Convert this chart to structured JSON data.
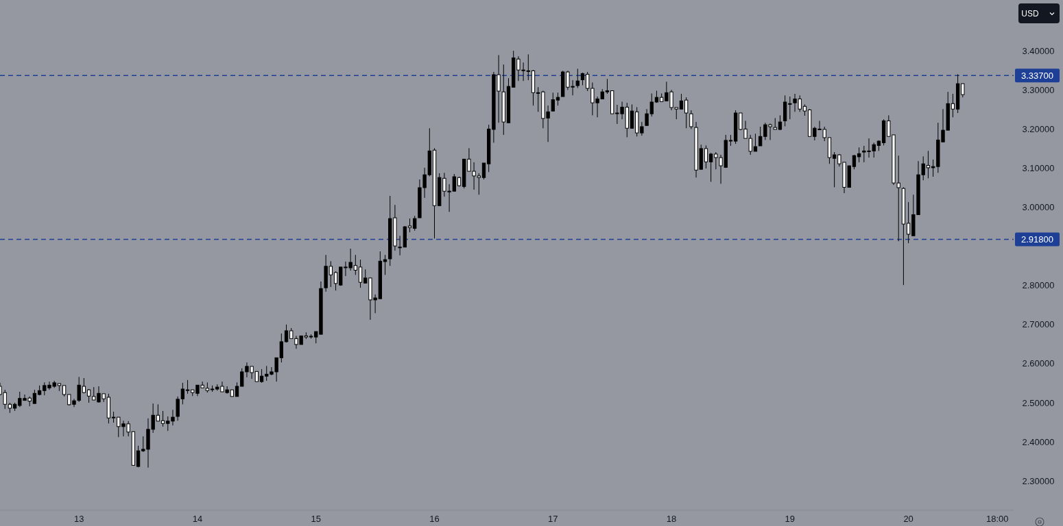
{
  "chart_data": {
    "type": "candlestick",
    "color": "#000000",
    "categories": [
      null,
      null,
      null,
      null,
      null,
      null,
      null,
      null,
      null,
      null,
      null,
      null,
      null,
      null,
      null,
      null,
      "13",
      null,
      null,
      null,
      null,
      null,
      null,
      null,
      null,
      null,
      null,
      null,
      null,
      null,
      null,
      null,
      null,
      null,
      null,
      null,
      null,
      null,
      null,
      null,
      "14",
      null,
      null,
      null,
      null,
      null,
      null,
      null,
      null,
      null,
      null,
      null,
      null,
      null,
      null,
      null,
      null,
      null,
      null,
      null,
      null,
      null,
      null,
      null,
      "15",
      null,
      null,
      null,
      null,
      null,
      null,
      null,
      null,
      null,
      null,
      null,
      null,
      null,
      null,
      null,
      null,
      null,
      null,
      null,
      null,
      null,
      null,
      null,
      "16",
      null,
      null,
      null,
      null,
      null,
      null,
      null,
      null,
      null,
      null,
      null,
      null,
      null,
      null,
      null,
      null,
      null,
      null,
      null,
      null,
      null,
      null,
      null,
      "17",
      null,
      null,
      null,
      null,
      null,
      null,
      null,
      null,
      null,
      null,
      null,
      null,
      null,
      null,
      null,
      null,
      null,
      null,
      null,
      null,
      null,
      null,
      null,
      "18",
      null,
      null,
      null,
      null,
      null,
      null,
      null,
      null,
      null,
      null,
      null,
      null,
      null,
      null,
      null,
      null,
      null,
      null,
      null,
      null,
      null,
      null,
      null,
      "19",
      null,
      null,
      null,
      null,
      null,
      null,
      null,
      null,
      null,
      null,
      null,
      null,
      null,
      null,
      null,
      null,
      null,
      null,
      null,
      null,
      null,
      null,
      null,
      "20",
      null,
      null,
      null,
      null,
      null,
      null,
      null,
      null,
      null,
      null,
      null,
      null,
      null,
      null,
      null,
      null,
      null,
      "18:00",
      null,
      null,
      null
    ],
    "ohlc": [
      [
        2.542,
        2.551,
        2.519,
        2.521
      ],
      [
        2.526,
        2.533,
        2.484,
        2.496
      ],
      [
        2.496,
        2.5,
        2.474,
        2.486
      ],
      [
        2.486,
        2.5,
        2.479,
        2.496
      ],
      [
        2.493,
        2.528,
        2.489,
        2.511
      ],
      [
        2.506,
        2.521,
        2.506,
        2.511
      ],
      [
        2.512,
        2.516,
        2.491,
        2.504
      ],
      [
        2.498,
        2.533,
        2.498,
        2.524
      ],
      [
        2.521,
        2.544,
        2.519,
        2.531
      ],
      [
        2.531,
        2.552,
        2.519,
        2.544
      ],
      [
        2.538,
        2.554,
        2.533,
        2.545
      ],
      [
        2.542,
        2.556,
        2.538,
        2.551
      ],
      [
        2.549,
        2.549,
        2.53,
        2.544
      ],
      [
        2.544,
        2.544,
        2.516,
        2.521
      ],
      [
        2.521,
        2.521,
        2.493,
        2.495
      ],
      [
        2.496,
        2.51,
        2.489,
        2.505
      ],
      [
        2.506,
        2.566,
        2.502,
        2.545
      ],
      [
        2.542,
        2.563,
        2.524,
        2.526
      ],
      [
        2.533,
        2.535,
        2.5,
        2.517
      ],
      [
        2.516,
        2.54,
        2.507,
        2.507
      ],
      [
        2.502,
        2.542,
        2.5,
        2.524
      ],
      [
        2.523,
        2.523,
        2.502,
        2.51
      ],
      [
        2.514,
        2.523,
        2.447,
        2.461
      ],
      [
        2.463,
        2.477,
        2.449,
        2.463
      ],
      [
        2.463,
        2.463,
        2.412,
        2.439
      ],
      [
        2.439,
        2.454,
        2.414,
        2.446
      ],
      [
        2.446,
        2.453,
        2.414,
        2.425
      ],
      [
        2.426,
        2.426,
        2.339,
        2.34
      ],
      [
        2.337,
        2.39,
        2.335,
        2.377
      ],
      [
        2.377,
        2.414,
        2.374,
        2.381
      ],
      [
        2.381,
        2.46,
        2.334,
        2.432
      ],
      [
        2.432,
        2.498,
        2.423,
        2.468
      ],
      [
        2.468,
        2.496,
        2.453,
        2.453
      ],
      [
        2.454,
        2.479,
        2.439,
        2.447
      ],
      [
        2.447,
        2.465,
        2.428,
        2.453
      ],
      [
        2.453,
        2.482,
        2.442,
        2.463
      ],
      [
        2.465,
        2.516,
        2.454,
        2.509
      ],
      [
        2.51,
        2.551,
        2.496,
        2.535
      ],
      [
        2.533,
        2.558,
        2.523,
        2.533
      ],
      [
        2.533,
        2.533,
        2.517,
        2.526
      ],
      [
        2.524,
        2.545,
        2.517,
        2.545
      ],
      [
        2.545,
        2.554,
        2.538,
        2.538
      ],
      [
        2.537,
        2.552,
        2.526,
        2.531
      ],
      [
        2.535,
        2.544,
        2.528,
        2.535
      ],
      [
        2.535,
        2.547,
        2.531,
        2.54
      ],
      [
        2.542,
        2.554,
        2.528,
        2.528
      ],
      [
        2.526,
        2.542,
        2.523,
        2.533
      ],
      [
        2.533,
        2.533,
        2.516,
        2.516
      ],
      [
        2.516,
        2.552,
        2.516,
        2.542
      ],
      [
        2.542,
        2.588,
        2.542,
        2.579
      ],
      [
        2.579,
        2.603,
        2.565,
        2.593
      ],
      [
        2.593,
        2.593,
        2.561,
        2.577
      ],
      [
        2.58,
        2.58,
        2.554,
        2.554
      ],
      [
        2.554,
        2.586,
        2.551,
        2.568
      ],
      [
        2.568,
        2.594,
        2.556,
        2.573
      ],
      [
        2.573,
        2.591,
        2.57,
        2.579
      ],
      [
        2.579,
        2.615,
        2.554,
        2.615
      ],
      [
        2.615,
        2.677,
        2.603,
        2.656
      ],
      [
        2.656,
        2.7,
        2.654,
        2.684
      ],
      [
        2.684,
        2.691,
        2.664,
        2.664
      ],
      [
        2.664,
        2.671,
        2.638,
        2.649
      ],
      [
        2.649,
        2.671,
        2.649,
        2.671
      ],
      [
        2.671,
        2.68,
        2.663,
        2.668
      ],
      [
        2.67,
        2.675,
        2.664,
        2.67
      ],
      [
        2.668,
        2.682,
        2.652,
        2.682
      ],
      [
        2.675,
        2.81,
        2.675,
        2.792
      ],
      [
        2.794,
        2.878,
        2.784,
        2.849
      ],
      [
        2.849,
        2.862,
        2.796,
        2.827
      ],
      [
        2.833,
        2.836,
        2.787,
        2.805
      ],
      [
        2.801,
        2.847,
        2.799,
        2.847
      ],
      [
        2.847,
        2.861,
        2.824,
        2.847
      ],
      [
        2.845,
        2.894,
        2.838,
        2.859
      ],
      [
        2.851,
        2.878,
        2.827,
        2.839
      ],
      [
        2.847,
        2.866,
        2.794,
        2.808
      ],
      [
        2.806,
        2.841,
        2.806,
        2.819
      ],
      [
        2.819,
        2.82,
        2.712,
        2.763
      ],
      [
        2.763,
        2.777,
        2.729,
        2.768
      ],
      [
        2.766,
        2.887,
        2.766,
        2.862
      ],
      [
        2.861,
        2.878,
        2.827,
        2.866
      ],
      [
        2.868,
        3.029,
        2.85,
        2.971
      ],
      [
        2.973,
        3.006,
        2.889,
        2.901
      ],
      [
        2.898,
        2.927,
        2.877,
        2.898
      ],
      [
        2.898,
        2.952,
        2.898,
        2.95
      ],
      [
        2.952,
        2.971,
        2.936,
        2.948
      ],
      [
        2.946,
        2.978,
        2.94,
        2.971
      ],
      [
        2.973,
        3.071,
        2.973,
        3.05
      ],
      [
        3.05,
        3.101,
        3.024,
        3.083
      ],
      [
        3.083,
        3.202,
        3.079,
        3.144
      ],
      [
        3.146,
        3.151,
        2.92,
        3.004
      ],
      [
        3.004,
        3.087,
        3.004,
        3.076
      ],
      [
        3.074,
        3.088,
        3.027,
        3.041
      ],
      [
        3.041,
        3.059,
        2.988,
        3.041
      ],
      [
        3.041,
        3.085,
        3.041,
        3.078
      ],
      [
        3.076,
        3.078,
        3.053,
        3.055
      ],
      [
        3.053,
        3.123,
        3.048,
        3.123
      ],
      [
        3.123,
        3.151,
        3.092,
        3.092
      ],
      [
        3.092,
        3.115,
        3.045,
        3.08
      ],
      [
        3.08,
        3.087,
        3.032,
        3.076
      ],
      [
        3.076,
        3.113,
        3.071,
        3.113
      ],
      [
        3.111,
        3.211,
        3.09,
        3.2
      ],
      [
        3.199,
        3.346,
        3.165,
        3.339
      ],
      [
        3.339,
        3.389,
        3.216,
        3.297
      ],
      [
        3.295,
        3.365,
        3.185,
        3.218
      ],
      [
        3.216,
        3.33,
        3.216,
        3.309
      ],
      [
        3.307,
        3.4,
        3.307,
        3.382
      ],
      [
        3.379,
        3.386,
        3.323,
        3.351
      ],
      [
        3.351,
        3.37,
        3.323,
        3.351
      ],
      [
        3.349,
        3.391,
        3.325,
        3.349
      ],
      [
        3.349,
        3.351,
        3.26,
        3.293
      ],
      [
        3.293,
        3.307,
        3.244,
        3.293
      ],
      [
        3.295,
        3.298,
        3.202,
        3.227
      ],
      [
        3.228,
        3.26,
        3.167,
        3.244
      ],
      [
        3.246,
        3.293,
        3.246,
        3.275
      ],
      [
        3.274,
        3.293,
        3.26,
        3.281
      ],
      [
        3.283,
        3.349,
        3.283,
        3.346
      ],
      [
        3.346,
        3.349,
        3.3,
        3.307
      ],
      [
        3.309,
        3.325,
        3.286,
        3.309
      ],
      [
        3.311,
        3.354,
        3.305,
        3.323
      ],
      [
        3.326,
        3.344,
        3.312,
        3.342
      ],
      [
        3.34,
        3.346,
        3.297,
        3.304
      ],
      [
        3.304,
        3.319,
        3.235,
        3.267
      ],
      [
        3.267,
        3.283,
        3.23,
        3.277
      ],
      [
        3.277,
        3.302,
        3.276,
        3.295
      ],
      [
        3.295,
        3.328,
        3.29,
        3.298
      ],
      [
        3.298,
        3.298,
        3.239,
        3.239
      ],
      [
        3.241,
        3.262,
        3.213,
        3.241
      ],
      [
        3.239,
        3.27,
        3.225,
        3.256
      ],
      [
        3.256,
        3.267,
        3.179,
        3.202
      ],
      [
        3.202,
        3.263,
        3.202,
        3.246
      ],
      [
        3.244,
        3.256,
        3.181,
        3.19
      ],
      [
        3.19,
        3.218,
        3.183,
        3.206
      ],
      [
        3.209,
        3.251,
        3.209,
        3.239
      ],
      [
        3.239,
        3.291,
        3.232,
        3.269
      ],
      [
        3.269,
        3.298,
        3.267,
        3.281
      ],
      [
        3.281,
        3.291,
        3.269,
        3.27
      ],
      [
        3.272,
        3.321,
        3.272,
        3.293
      ],
      [
        3.295,
        3.3,
        3.248,
        3.255
      ],
      [
        3.255,
        3.255,
        3.225,
        3.251
      ],
      [
        3.251,
        3.29,
        3.251,
        3.272
      ],
      [
        3.274,
        3.281,
        3.202,
        3.241
      ],
      [
        3.239,
        3.248,
        3.2,
        3.206
      ],
      [
        3.204,
        3.218,
        3.076,
        3.095
      ],
      [
        3.097,
        3.16,
        3.097,
        3.15
      ],
      [
        3.15,
        3.158,
        3.099,
        3.116
      ],
      [
        3.116,
        3.139,
        3.065,
        3.136
      ],
      [
        3.136,
        3.141,
        3.097,
        3.127
      ],
      [
        3.127,
        3.134,
        3.06,
        3.106
      ],
      [
        3.102,
        3.185,
        3.102,
        3.171
      ],
      [
        3.171,
        3.185,
        3.157,
        3.171
      ],
      [
        3.169,
        3.248,
        3.162,
        3.241
      ],
      [
        3.241,
        3.241,
        3.197,
        3.199
      ],
      [
        3.2,
        3.221,
        3.176,
        3.176
      ],
      [
        3.176,
        3.185,
        3.134,
        3.143
      ],
      [
        3.143,
        3.188,
        3.143,
        3.155
      ],
      [
        3.157,
        3.206,
        3.157,
        3.181
      ],
      [
        3.181,
        3.216,
        3.172,
        3.211
      ],
      [
        3.211,
        3.214,
        3.172,
        3.206
      ],
      [
        3.204,
        3.228,
        3.199,
        3.199
      ],
      [
        3.199,
        3.235,
        3.197,
        3.218
      ],
      [
        3.221,
        3.286,
        3.207,
        3.269
      ],
      [
        3.265,
        3.283,
        3.225,
        3.265
      ],
      [
        3.267,
        3.29,
        3.244,
        3.277
      ],
      [
        3.277,
        3.286,
        3.244,
        3.251
      ],
      [
        3.258,
        3.263,
        3.234,
        3.246
      ],
      [
        3.249,
        3.251,
        3.181,
        3.181
      ],
      [
        3.181,
        3.206,
        3.171,
        3.202
      ],
      [
        3.2,
        3.221,
        3.2,
        3.2
      ],
      [
        3.199,
        3.206,
        3.169,
        3.178
      ],
      [
        3.178,
        3.178,
        3.111,
        3.127
      ],
      [
        3.125,
        3.141,
        3.051,
        3.134
      ],
      [
        3.134,
        3.136,
        3.104,
        3.111
      ],
      [
        3.115,
        3.115,
        3.036,
        3.051
      ],
      [
        3.051,
        3.106,
        3.05,
        3.106
      ],
      [
        3.104,
        3.134,
        3.097,
        3.132
      ],
      [
        3.129,
        3.153,
        3.115,
        3.137
      ],
      [
        3.141,
        3.157,
        3.115,
        3.144
      ],
      [
        3.144,
        3.176,
        3.127,
        3.144
      ],
      [
        3.144,
        3.165,
        3.127,
        3.16
      ],
      [
        3.158,
        3.171,
        3.144,
        3.169
      ],
      [
        3.165,
        3.225,
        3.158,
        3.221
      ],
      [
        3.221,
        3.235,
        3.181,
        3.181
      ],
      [
        3.185,
        3.185,
        3.057,
        3.062
      ],
      [
        3.062,
        3.132,
        2.913,
        3.05
      ],
      [
        3.048,
        3.051,
        2.801,
        2.957
      ],
      [
        2.959,
        3.013,
        2.908,
        2.931
      ],
      [
        2.927,
        3.032,
        2.927,
        2.981
      ],
      [
        2.981,
        3.118,
        2.981,
        3.083
      ],
      [
        3.083,
        3.13,
        3.069,
        3.111
      ],
      [
        3.107,
        3.144,
        3.074,
        3.101
      ],
      [
        3.101,
        3.122,
        3.078,
        3.104
      ],
      [
        3.104,
        3.216,
        3.088,
        3.172
      ],
      [
        3.167,
        3.251,
        3.167,
        3.197
      ],
      [
        3.197,
        3.295,
        3.197,
        3.265
      ],
      [
        3.265,
        3.29,
        3.23,
        3.251
      ],
      [
        3.251,
        3.34,
        3.241,
        3.316
      ],
      [
        3.316,
        3.316,
        3.281,
        3.288
      ],
      null,
      null,
      null,
      null,
      null,
      null,
      null,
      null,
      null,
      null
    ],
    "ylim": [
      2.225,
      3.53
    ],
    "yticks": [
      {
        "value": 2.3,
        "label": "2.30000"
      },
      {
        "value": 2.4,
        "label": "2.40000"
      },
      {
        "value": 2.5,
        "label": "2.50000"
      },
      {
        "value": 2.6,
        "label": "2.60000"
      },
      {
        "value": 2.7,
        "label": "2.70000"
      },
      {
        "value": 2.8,
        "label": "2.80000"
      },
      {
        "value": 3.0,
        "label": "3.00000"
      },
      {
        "value": 3.1,
        "label": "3.10000"
      },
      {
        "value": 3.2,
        "label": "3.20000"
      },
      {
        "value": 3.3,
        "label": "3.30000"
      },
      {
        "value": 3.4,
        "label": "3.40000"
      }
    ],
    "ref_lines": [
      {
        "axis": "y",
        "value": 3.337,
        "label": "3.33700",
        "color": "#1e3f96",
        "line_style": "dashed"
      },
      {
        "axis": "y",
        "value": 2.918,
        "label": "2.91800",
        "color": "#1e3f96",
        "line_style": "dashed"
      }
    ],
    "annotations": [
      "USD"
    ],
    "grid": false
  }
}
